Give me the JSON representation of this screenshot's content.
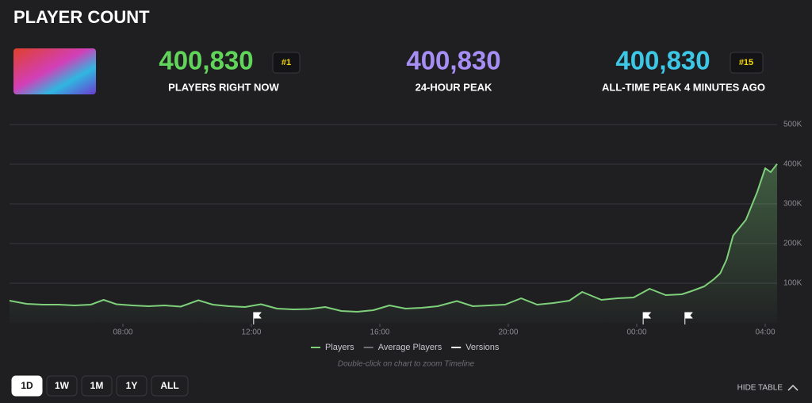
{
  "header": {
    "title": "PLAYER COUNT"
  },
  "stats": [
    {
      "value": "400,830",
      "label": "PLAYERS RIGHT NOW",
      "rank": "#1"
    },
    {
      "value": "400,830",
      "label": "24-HOUR PEAK"
    },
    {
      "value": "400,830",
      "label": "ALL-TIME PEAK 4 MINUTES AGO",
      "rank": "#15"
    }
  ],
  "chart_data": {
    "type": "line",
    "x": [
      4.47,
      5,
      5.5,
      6,
      6.5,
      7,
      7.4,
      7.8,
      8.3,
      8.8,
      9.3,
      9.8,
      10.35,
      10.8,
      11.3,
      11.8,
      12.3,
      12.8,
      13.3,
      13.8,
      14.3,
      14.8,
      15.3,
      15.8,
      16.3,
      16.8,
      17.3,
      17.8,
      18.4,
      18.9,
      19.4,
      19.9,
      20.4,
      20.9,
      21.4,
      21.9,
      22.3,
      22.9,
      23.4,
      23.9,
      24.4,
      24.9,
      25.4,
      25.7,
      26.1,
      26.4,
      26.6,
      26.8,
      27.0,
      27.4,
      27.75,
      28.0,
      28.17,
      28.37
    ],
    "series": [
      {
        "name": "Players",
        "color": "#7ed07a",
        "values": [
          56000,
          48000,
          46000,
          46000,
          44000,
          46000,
          58000,
          47000,
          44000,
          42000,
          44000,
          41000,
          57000,
          46000,
          42000,
          40000,
          47000,
          36000,
          34000,
          35000,
          40000,
          30000,
          28000,
          32000,
          44000,
          36000,
          38000,
          42000,
          55000,
          42000,
          44000,
          46000,
          62000,
          46000,
          50000,
          56000,
          78000,
          58000,
          62000,
          64000,
          86000,
          70000,
          72000,
          80000,
          92000,
          110000,
          125000,
          160000,
          220000,
          260000,
          330000,
          390000,
          380000,
          400830
        ]
      }
    ],
    "legend": [
      {
        "name": "Players",
        "color": "#7ed07a"
      },
      {
        "name": "Average Players",
        "color": "#6e6e73"
      },
      {
        "name": "Versions",
        "color": "#ffffff"
      }
    ],
    "versions": [
      12.07,
      24.2,
      25.5
    ],
    "xlim": [
      4.47,
      28.37
    ],
    "xticks": [
      {
        "value": 8,
        "label": "08:00"
      },
      {
        "value": 12,
        "label": "12:00"
      },
      {
        "value": 16,
        "label": "16:00"
      },
      {
        "value": 20,
        "label": "20:00"
      },
      {
        "value": 24,
        "label": "00:00"
      },
      {
        "value": 28,
        "label": "04:00"
      }
    ],
    "ylim": [
      0,
      500000
    ],
    "yticks": [
      {
        "value": 100000,
        "label": "100K"
      },
      {
        "value": 200000,
        "label": "200K"
      },
      {
        "value": 300000,
        "label": "300K"
      },
      {
        "value": 400000,
        "label": "400K"
      },
      {
        "value": 500000,
        "label": "500K"
      }
    ],
    "grid": true,
    "hint": "Double-click on chart to zoom Timeline"
  },
  "controls": {
    "ranges": [
      "1D",
      "1W",
      "1M",
      "1Y",
      "ALL"
    ],
    "toggle": "HIDE TABLE"
  }
}
